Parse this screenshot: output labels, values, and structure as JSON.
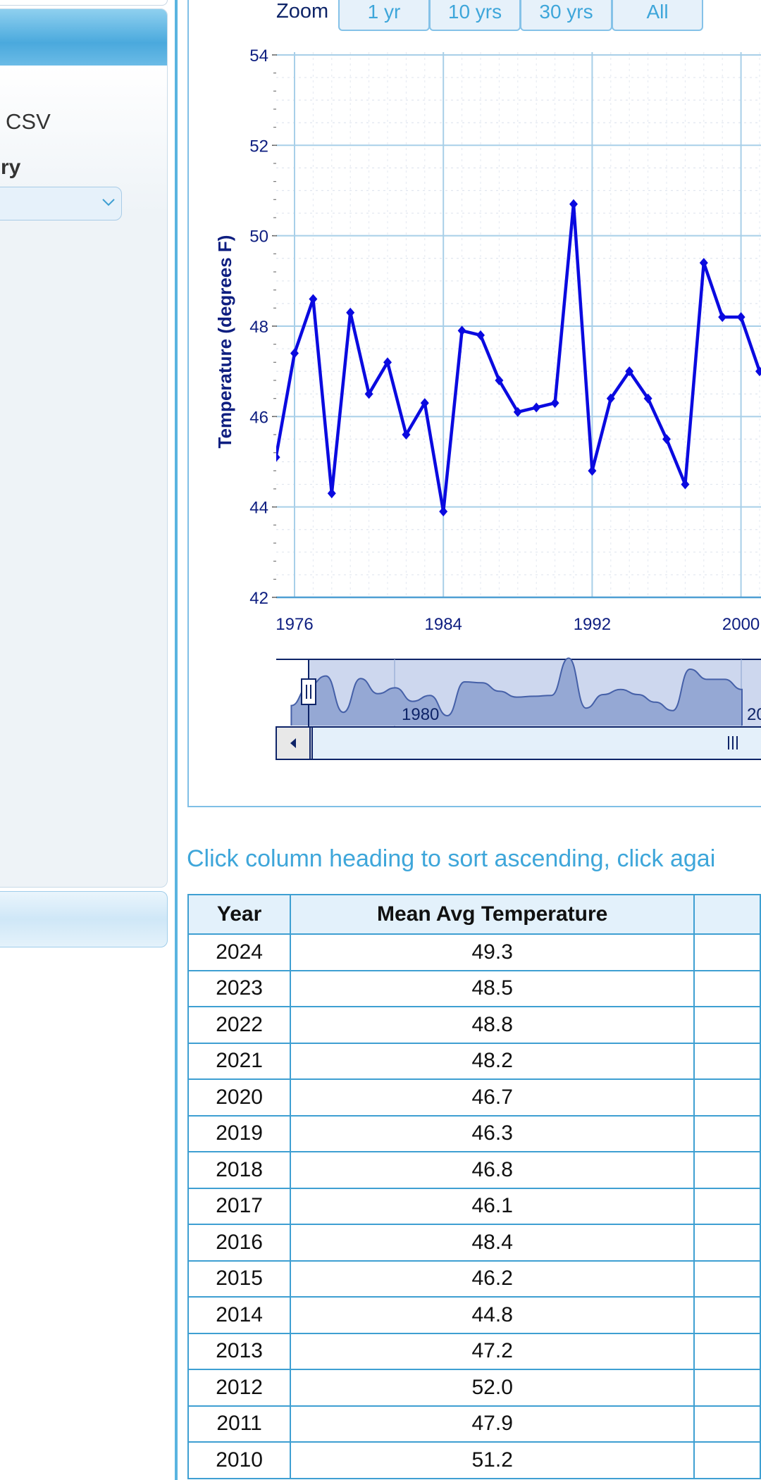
{
  "sidebar": {
    "csv_label": "CSV",
    "section_label": "ry"
  },
  "zoom": {
    "label": "Zoom",
    "buttons": [
      "1 yr",
      "10 yrs",
      "30 yrs",
      "All"
    ]
  },
  "navigator": {
    "tick_labels": [
      "1980",
      "20"
    ]
  },
  "instructions": "Click column heading to sort ascending, click agai",
  "table": {
    "headers": [
      "Year",
      "Mean Avg Temperature"
    ],
    "rows": [
      [
        "2024",
        "49.3"
      ],
      [
        "2023",
        "48.5"
      ],
      [
        "2022",
        "48.8"
      ],
      [
        "2021",
        "48.2"
      ],
      [
        "2020",
        "46.7"
      ],
      [
        "2019",
        "46.3"
      ],
      [
        "2018",
        "46.8"
      ],
      [
        "2017",
        "46.1"
      ],
      [
        "2016",
        "48.4"
      ],
      [
        "2015",
        "46.2"
      ],
      [
        "2014",
        "44.8"
      ],
      [
        "2013",
        "47.2"
      ],
      [
        "2012",
        "52.0"
      ],
      [
        "2011",
        "47.9"
      ],
      [
        "2010",
        "51.2"
      ]
    ]
  },
  "chart_data": {
    "type": "line",
    "ylabel": "Temperature (degrees F)",
    "ylim": [
      42,
      54
    ],
    "yticks": [
      42,
      44,
      46,
      48,
      50,
      52,
      54
    ],
    "xticks": [
      1976,
      1984,
      1992,
      2000
    ],
    "grid": true,
    "line_color": "#0a0ae0",
    "series": [
      {
        "x": [
          1975,
          1976,
          1977,
          1978,
          1979,
          1980,
          1981,
          1982,
          1983,
          1984,
          1985,
          1986,
          1987,
          1988,
          1989,
          1990,
          1991,
          1992,
          1993,
          1994,
          1995,
          1996,
          1997,
          1998,
          1999,
          2000,
          2001
        ],
        "values": [
          45.1,
          47.4,
          48.6,
          44.3,
          48.3,
          46.5,
          47.2,
          45.6,
          46.3,
          43.9,
          47.9,
          47.8,
          46.8,
          46.1,
          46.2,
          46.3,
          50.7,
          44.8,
          46.4,
          47.0,
          46.4,
          45.5,
          44.5,
          49.4,
          48.2,
          48.2,
          47.0
        ]
      }
    ]
  }
}
